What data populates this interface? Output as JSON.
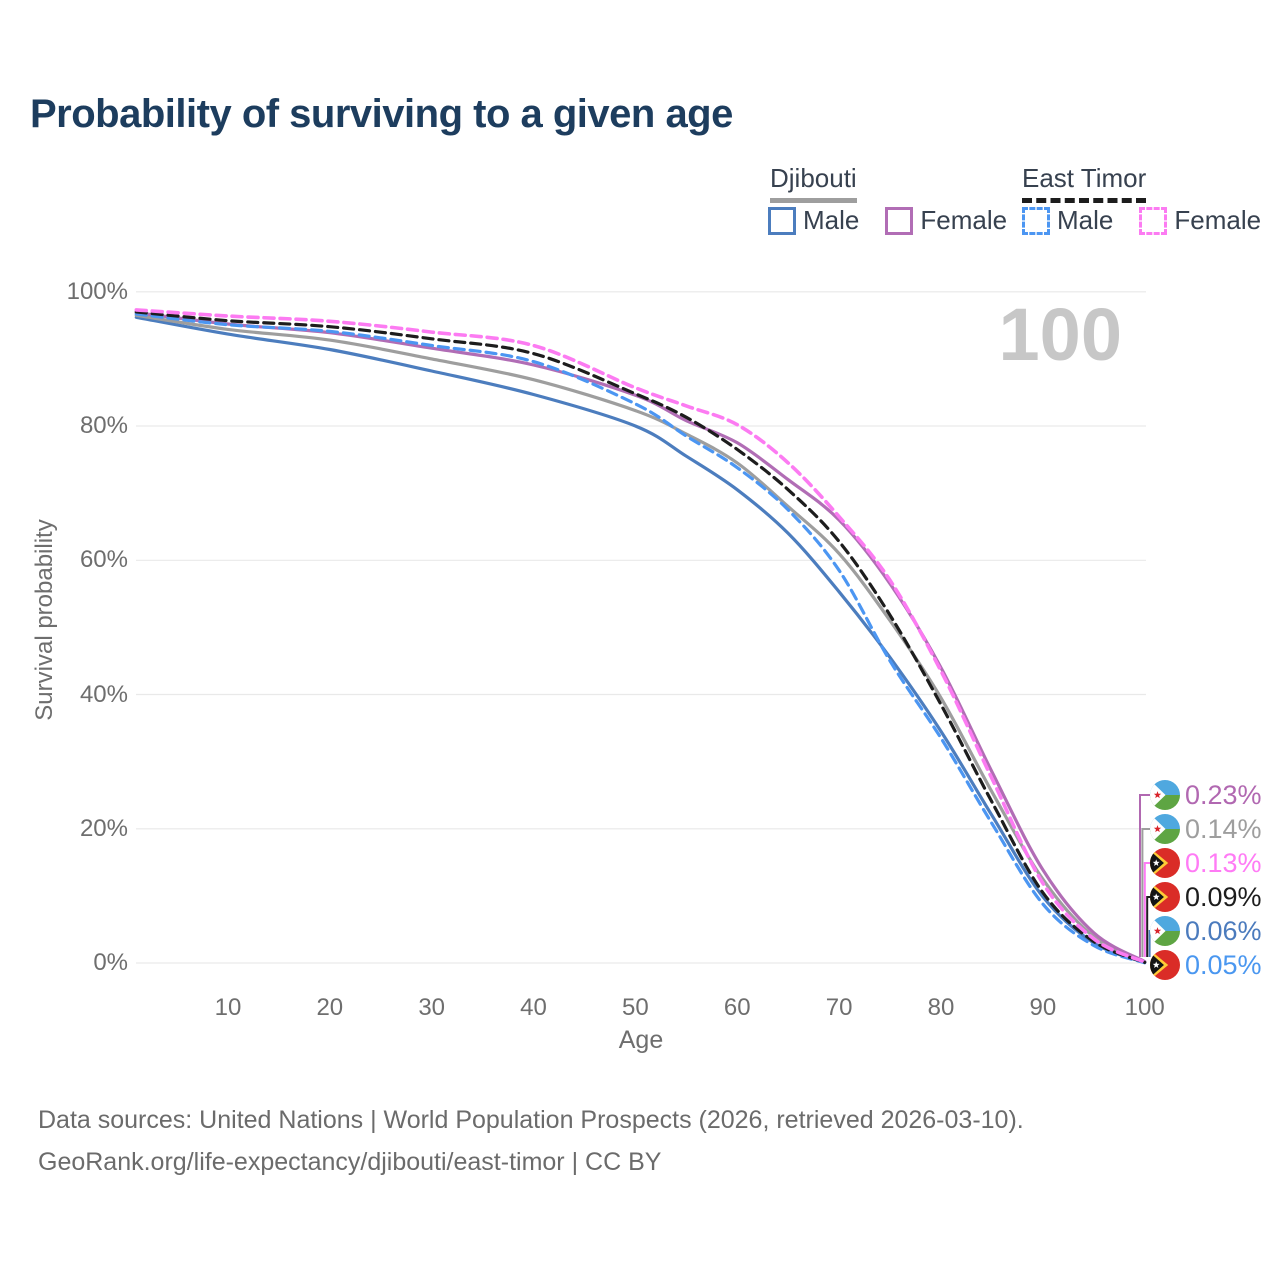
{
  "title": "Probability of surviving to a given age",
  "age_counter": "100",
  "legend": {
    "groups": [
      {
        "label": "Djibouti",
        "line_style": "solid",
        "underline_color": "#9e9e9e",
        "items": [
          {
            "label": "Male",
            "color": "#4c7dbe"
          },
          {
            "label": "Female",
            "color": "#b16db5"
          }
        ]
      },
      {
        "label": "East Timor",
        "line_style": "dashed",
        "underline_color": "#1d1d1d",
        "items": [
          {
            "label": "Male",
            "color": "#4c96f2"
          },
          {
            "label": "Female",
            "color": "#fc7bf2"
          }
        ]
      }
    ]
  },
  "axes": {
    "x": {
      "label": "Age",
      "ticks": [
        "10",
        "20",
        "30",
        "40",
        "50",
        "60",
        "70",
        "80",
        "90",
        "100"
      ]
    },
    "y": {
      "label": "Survival probability",
      "ticks": [
        "0%",
        "20%",
        "40%",
        "60%",
        "80%",
        "100%"
      ]
    }
  },
  "end_labels": [
    {
      "value": "0.23%",
      "flag": "djibouti",
      "color": "#b168b1"
    },
    {
      "value": "0.14%",
      "flag": "djibouti",
      "color": "#9e9e9e"
    },
    {
      "value": "0.13%",
      "flag": "east-timor",
      "color": "#ff7bf5"
    },
    {
      "value": "0.09%",
      "flag": "east-timor",
      "color": "#1d1d1d"
    },
    {
      "value": "0.06%",
      "flag": "djibouti",
      "color": "#4b7bbd"
    },
    {
      "value": "0.05%",
      "flag": "east-timor",
      "color": "#4a97f0"
    }
  ],
  "footer": {
    "line1": "Data sources: United Nations | World Population Prospects (2026, retrieved 2026-03-10).",
    "line2": "GeoRank.org/life-expectancy/djibouti/east-timor | CC BY"
  },
  "chart_data": {
    "type": "line",
    "title": "Probability of surviving to a given age",
    "xlabel": "Age",
    "ylabel": "Survival probability",
    "xlim": [
      1,
      100
    ],
    "ylim": [
      0,
      100
    ],
    "grid": "horizontal",
    "legend_position": "top-right",
    "x": [
      1,
      10,
      20,
      30,
      40,
      50,
      55,
      60,
      65,
      70,
      75,
      80,
      85,
      90,
      95,
      100
    ],
    "series": [
      {
        "name": "Djibouti Female",
        "country": "Djibouti",
        "sex": "Female",
        "color": "#b16db5",
        "dash": "solid",
        "values": [
          96.9,
          95.2,
          93.9,
          91.6,
          89.1,
          84.6,
          80.8,
          77.5,
          72.0,
          66.0,
          56.5,
          44.0,
          28.5,
          13.9,
          4.5,
          0.23
        ]
      },
      {
        "name": "Djibouti Both sexes",
        "country": "Djibouti",
        "sex": "Both",
        "color": "#9e9e9e",
        "dash": "solid",
        "values": [
          96.5,
          94.4,
          92.8,
          90.0,
          86.9,
          82.3,
          78.8,
          74.5,
          68.0,
          61.0,
          51.0,
          39.5,
          25.5,
          12.5,
          3.9,
          0.14
        ]
      },
      {
        "name": "Djibouti Male",
        "country": "Djibouti",
        "sex": "Male",
        "color": "#4c7dbe",
        "dash": "solid",
        "values": [
          96.2,
          93.7,
          91.4,
          88.2,
          84.7,
          80.0,
          75.5,
          70.5,
          64.0,
          55.3,
          45.5,
          34.5,
          22.0,
          9.9,
          3.0,
          0.06
        ]
      },
      {
        "name": "East Timor Female",
        "country": "East Timor",
        "sex": "Female",
        "color": "#fc7bf2",
        "dash": "dashed",
        "values": [
          97.3,
          96.4,
          95.6,
          94.0,
          92.0,
          85.7,
          83.0,
          80.2,
          74.5,
          66.5,
          57.0,
          43.5,
          27.5,
          11.9,
          3.6,
          0.13
        ]
      },
      {
        "name": "East Timor Both sexes",
        "country": "East Timor",
        "sex": "Both",
        "color": "#1d1d1d",
        "dash": "dashed",
        "values": [
          97.0,
          95.7,
          94.8,
          93.0,
          90.8,
          84.8,
          81.3,
          76.5,
          70.5,
          62.8,
          51.8,
          38.5,
          24.0,
          10.5,
          3.2,
          0.09
        ]
      },
      {
        "name": "East Timor Male",
        "country": "East Timor",
        "sex": "Male",
        "color": "#4c96f2",
        "dash": "dashed",
        "values": [
          96.7,
          95.1,
          94.1,
          92.0,
          89.6,
          83.3,
          78.5,
          73.8,
          67.5,
          58.5,
          45.0,
          33.5,
          20.8,
          8.8,
          2.6,
          0.05
        ]
      }
    ],
    "end_values": {
      "Djibouti Female": 0.23,
      "Djibouti Both sexes": 0.14,
      "East Timor Female": 0.13,
      "East Timor Both sexes": 0.09,
      "Djibouti Male": 0.06,
      "East Timor Male": 0.05
    }
  }
}
